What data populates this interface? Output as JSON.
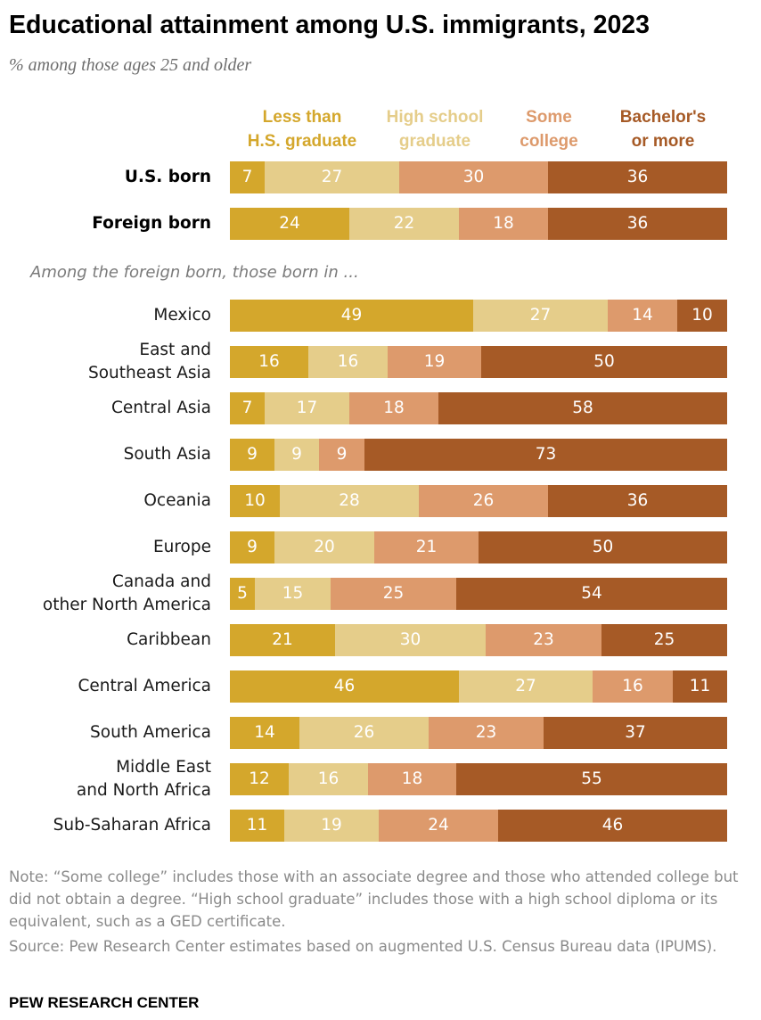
{
  "header": {
    "title": "Educational attainment among U.S. immigrants, 2023",
    "subtitle": "% among those ages 25 and older"
  },
  "legend": [
    {
      "line1": "Less than",
      "line2": "H.S. graduate",
      "color": "#d4a72c"
    },
    {
      "line1": "High school",
      "line2": "graduate",
      "color": "#e5cd8a"
    },
    {
      "line1": "Some",
      "line2": "college",
      "color": "#dd9a6c"
    },
    {
      "line1": "Bachelor's",
      "line2": "or more",
      "color": "#a65a26"
    }
  ],
  "section_label": "Among the foreign born, those born in ...",
  "chart_data": {
    "type": "bar",
    "orientation": "horizontal",
    "stacked": true,
    "title": "Educational attainment among U.S. immigrants, 2023",
    "subtitle": "% among those ages 25 and older",
    "series_names": [
      "Less than H.S. graduate",
      "High school graduate",
      "Some college",
      "Bachelor's or more"
    ],
    "colors": [
      "#d4a72c",
      "#e5cd8a",
      "#dd9a6c",
      "#a65a26"
    ],
    "rows": [
      {
        "lines": [
          "U.S. born"
        ],
        "bold": true,
        "values": [
          7,
          27,
          30,
          36
        ]
      },
      {
        "lines": [
          "Foreign born"
        ],
        "bold": true,
        "values": [
          24,
          22,
          18,
          36
        ]
      },
      {
        "lines": [
          "Mexico"
        ],
        "bold": false,
        "values": [
          49,
          27,
          14,
          10
        ]
      },
      {
        "lines": [
          "East and",
          "Southeast Asia"
        ],
        "bold": false,
        "values": [
          16,
          16,
          19,
          50
        ]
      },
      {
        "lines": [
          "Central Asia"
        ],
        "bold": false,
        "values": [
          7,
          17,
          18,
          58
        ]
      },
      {
        "lines": [
          "South Asia"
        ],
        "bold": false,
        "values": [
          9,
          9,
          9,
          73
        ]
      },
      {
        "lines": [
          "Oceania"
        ],
        "bold": false,
        "values": [
          10,
          28,
          26,
          36
        ]
      },
      {
        "lines": [
          "Europe"
        ],
        "bold": false,
        "values": [
          9,
          20,
          21,
          50
        ]
      },
      {
        "lines": [
          "Canada and",
          "other North America"
        ],
        "bold": false,
        "values": [
          5,
          15,
          25,
          54
        ]
      },
      {
        "lines": [
          "Caribbean"
        ],
        "bold": false,
        "values": [
          21,
          30,
          23,
          25
        ]
      },
      {
        "lines": [
          "Central America"
        ],
        "bold": false,
        "values": [
          46,
          27,
          16,
          11
        ]
      },
      {
        "lines": [
          "South America"
        ],
        "bold": false,
        "values": [
          14,
          26,
          23,
          37
        ]
      },
      {
        "lines": [
          "Middle East",
          "and North Africa"
        ],
        "bold": false,
        "values": [
          12,
          16,
          18,
          55
        ]
      },
      {
        "lines": [
          "Sub-Saharan Africa"
        ],
        "bold": false,
        "values": [
          11,
          19,
          24,
          46
        ]
      }
    ]
  },
  "footer": {
    "note": "Note: “Some college” includes those with an associate degree and those who attended college but did not obtain a degree. “High school graduate” includes those with a high school diploma or its equivalent, such as a GED certificate.",
    "source": "Source: Pew Research Center estimates based on augmented U.S. Census Bureau data (IPUMS).",
    "brand": "PEW RESEARCH CENTER"
  }
}
